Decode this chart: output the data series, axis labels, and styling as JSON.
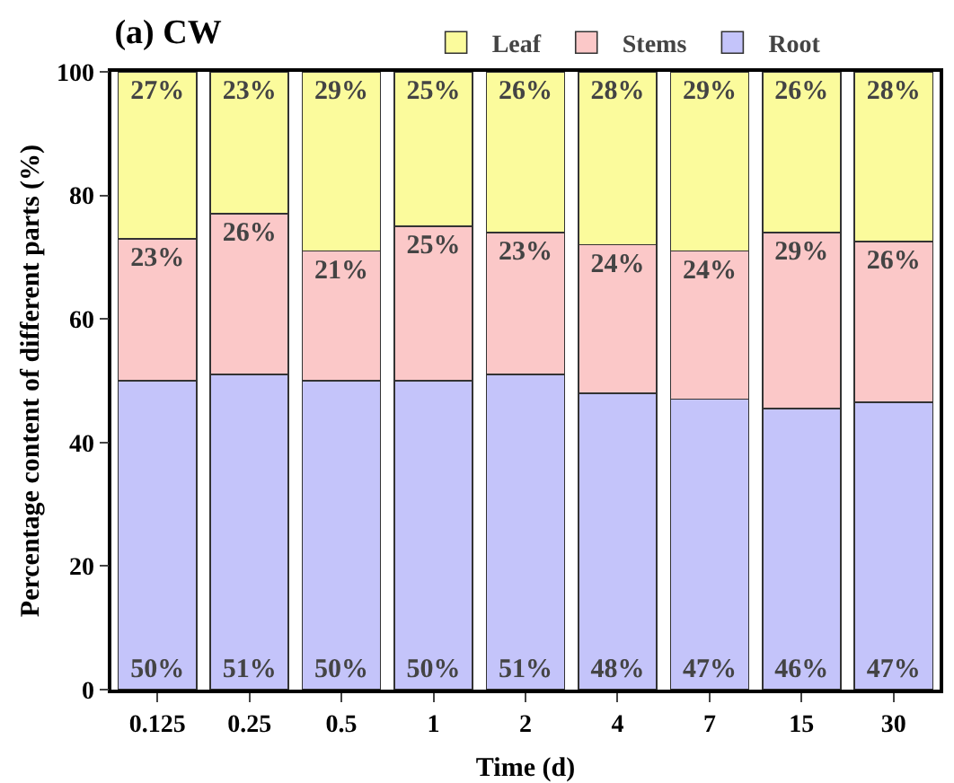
{
  "chart_data": {
    "type": "bar",
    "title": "(a) CW",
    "xlabel": "Time (d)",
    "ylabel": "Percentage content of different parts (%)",
    "categories": [
      "0.125",
      "0.25",
      "0.5",
      "1",
      "2",
      "4",
      "7",
      "15",
      "30"
    ],
    "stacked": true,
    "ylim": [
      0,
      100
    ],
    "yticks": [
      0,
      20,
      40,
      60,
      80,
      100
    ],
    "grid": false,
    "legend": "top",
    "series": [
      {
        "name": "Root",
        "color": "#c4c4fa",
        "values": [
          50,
          51,
          50,
          50,
          51,
          48,
          47,
          45.5,
          46.5
        ],
        "value_labels": [
          "50%",
          "51%",
          "50%",
          "50%",
          "51%",
          "48%",
          "47%",
          "46%",
          "47%"
        ]
      },
      {
        "name": "Stems",
        "color": "#fbc8c8",
        "values": [
          23,
          26,
          21,
          25,
          23,
          24,
          24,
          28.5,
          26
        ],
        "value_labels": [
          "23%",
          "26%",
          "21%",
          "25%",
          "23%",
          "24%",
          "24%",
          "29%",
          "26%"
        ]
      },
      {
        "name": "Leaf",
        "color": "#fbfb9c",
        "values": [
          27,
          23,
          29,
          25,
          26,
          28,
          29,
          26,
          27.5
        ],
        "value_labels": [
          "27%",
          "23%",
          "29%",
          "25%",
          "26%",
          "28%",
          "29%",
          "26%",
          "28%"
        ]
      }
    ]
  }
}
